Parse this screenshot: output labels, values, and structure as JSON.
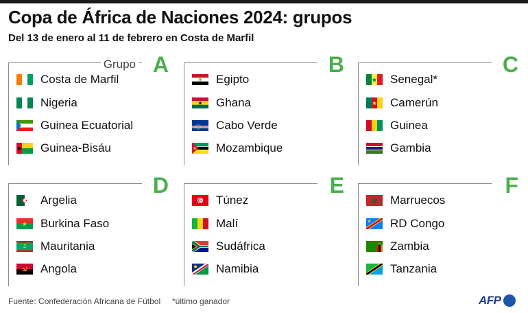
{
  "header": {
    "title": "Copa de África de Naciones 2024: grupos",
    "subtitle": "Del 13 de enero al 11 de febrero en Costa de Marfil"
  },
  "group_label": "Grupo",
  "groups": [
    {
      "letter": "A",
      "teams": [
        {
          "name": "Costa de Marfil",
          "flag": "ivory-coast-flag"
        },
        {
          "name": "Nigeria",
          "flag": "nigeria-flag"
        },
        {
          "name": "Guinea Ecuatorial",
          "flag": "equatorial-guinea-flag"
        },
        {
          "name": "Guinea-Bisáu",
          "flag": "guinea-bissau-flag"
        }
      ]
    },
    {
      "letter": "B",
      "teams": [
        {
          "name": "Egipto",
          "flag": "egypt-flag"
        },
        {
          "name": "Ghana",
          "flag": "ghana-flag"
        },
        {
          "name": "Cabo Verde",
          "flag": "cape-verde-flag"
        },
        {
          "name": "Mozambique",
          "flag": "mozambique-flag"
        }
      ]
    },
    {
      "letter": "C",
      "teams": [
        {
          "name": "Senegal*",
          "flag": "senegal-flag"
        },
        {
          "name": "Camerún",
          "flag": "cameroon-flag"
        },
        {
          "name": "Guinea",
          "flag": "guinea-flag"
        },
        {
          "name": "Gambia",
          "flag": "gambia-flag"
        }
      ]
    },
    {
      "letter": "D",
      "teams": [
        {
          "name": "Argelia",
          "flag": "algeria-flag"
        },
        {
          "name": "Burkina Faso",
          "flag": "burkina-faso-flag"
        },
        {
          "name": "Mauritania",
          "flag": "mauritania-flag"
        },
        {
          "name": "Angola",
          "flag": "angola-flag"
        }
      ]
    },
    {
      "letter": "E",
      "teams": [
        {
          "name": "Túnez",
          "flag": "tunisia-flag"
        },
        {
          "name": "Malí",
          "flag": "mali-flag"
        },
        {
          "name": "Sudáfrica",
          "flag": "south-africa-flag"
        },
        {
          "name": "Namibia",
          "flag": "namibia-flag"
        }
      ]
    },
    {
      "letter": "F",
      "teams": [
        {
          "name": "Marruecos",
          "flag": "morocco-flag"
        },
        {
          "name": "RD Congo",
          "flag": "dr-congo-flag"
        },
        {
          "name": "Zambia",
          "flag": "zambia-flag"
        },
        {
          "name": "Tanzania",
          "flag": "tanzania-flag"
        }
      ]
    }
  ],
  "footer": {
    "source": "Fuente: Confederación Africana de Fútbol",
    "note": "*último ganador",
    "logo": "AFP"
  },
  "colors": {
    "accent_green": "#4caf50",
    "afp_blue": "#1d56a8"
  }
}
